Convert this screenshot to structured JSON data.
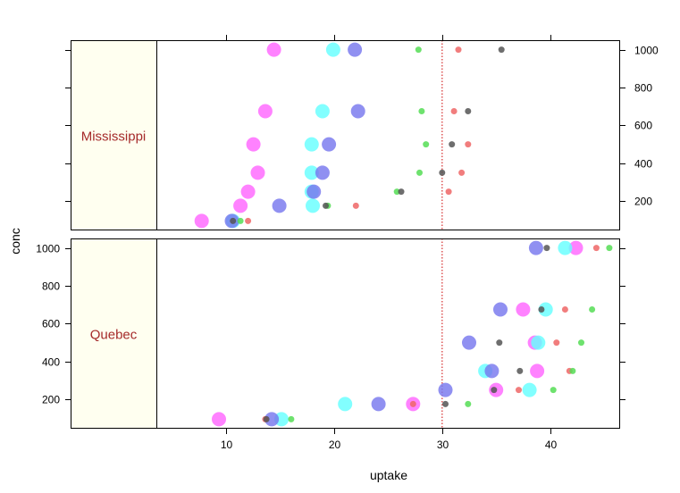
{
  "chart_data": {
    "type": "scatter",
    "title": "",
    "xlabel": "uptake",
    "ylabel": "conc",
    "xlim": [
      3.5,
      46.5
    ],
    "ylim": [
      45,
      1050
    ],
    "x_ticks": [
      10,
      20,
      30,
      40
    ],
    "y_ticks": [
      200,
      400,
      600,
      800,
      1000
    ],
    "reference_line": {
      "x": 30,
      "color": "#cc0000",
      "style": "dotted"
    },
    "grid": false,
    "panels": [
      {
        "strip": "Mississippi",
        "strip_color": "#fffff0",
        "series": [
          {
            "color": "#ff66ff",
            "size": "large",
            "points": [
              [
                7.7,
                95
              ],
              [
                11.3,
                175
              ],
              [
                12.0,
                250
              ],
              [
                12.9,
                350
              ],
              [
                12.5,
                500
              ],
              [
                13.6,
                675
              ],
              [
                14.4,
                1000
              ]
            ]
          },
          {
            "color": "#66ffff",
            "size": "large",
            "points": [
              [
                10.6,
                95
              ],
              [
                18.0,
                175
              ],
              [
                17.9,
                250
              ],
              [
                17.9,
                350
              ],
              [
                17.9,
                500
              ],
              [
                18.9,
                675
              ],
              [
                19.9,
                1000
              ]
            ]
          },
          {
            "color": "#7777ee",
            "size": "large",
            "points": [
              [
                10.5,
                95
              ],
              [
                14.9,
                175
              ],
              [
                18.1,
                250
              ],
              [
                18.9,
                350
              ],
              [
                19.5,
                500
              ],
              [
                22.2,
                675
              ],
              [
                21.9,
                1000
              ]
            ]
          },
          {
            "color": "#ee6666",
            "size": "small",
            "points": [
              [
                12.0,
                95
              ],
              [
                22.0,
                175
              ],
              [
                30.6,
                250
              ],
              [
                31.8,
                350
              ],
              [
                32.4,
                500
              ],
              [
                31.1,
                675
              ],
              [
                31.5,
                1000
              ]
            ]
          },
          {
            "color": "#55dd55",
            "size": "small",
            "points": [
              [
                11.3,
                95
              ],
              [
                19.4,
                175
              ],
              [
                25.8,
                250
              ],
              [
                27.9,
                350
              ],
              [
                28.5,
                500
              ],
              [
                28.1,
                675
              ],
              [
                27.8,
                1000
              ]
            ]
          },
          {
            "color": "#555555",
            "size": "small",
            "points": [
              [
                10.6,
                95
              ],
              [
                19.2,
                175
              ],
              [
                26.2,
                250
              ],
              [
                30.0,
                350
              ],
              [
                30.9,
                500
              ],
              [
                32.4,
                675
              ],
              [
                35.5,
                1000
              ]
            ]
          }
        ]
      },
      {
        "strip": "Quebec",
        "strip_color": "#fffff0",
        "series": [
          {
            "color": "#ff66ff",
            "size": "large",
            "points": [
              [
                9.3,
                95
              ],
              [
                27.3,
                175
              ],
              [
                35.0,
                250
              ],
              [
                38.8,
                350
              ],
              [
                38.6,
                500
              ],
              [
                37.5,
                675
              ],
              [
                42.4,
                1000
              ]
            ]
          },
          {
            "color": "#66ffff",
            "size": "large",
            "points": [
              [
                15.1,
                95
              ],
              [
                21.0,
                175
              ],
              [
                38.1,
                250
              ],
              [
                34.0,
                350
              ],
              [
                38.9,
                500
              ],
              [
                39.6,
                675
              ],
              [
                41.4,
                1000
              ]
            ]
          },
          {
            "color": "#7777ee",
            "size": "large",
            "points": [
              [
                14.2,
                95
              ],
              [
                24.1,
                175
              ],
              [
                30.3,
                250
              ],
              [
                34.6,
                350
              ],
              [
                32.5,
                500
              ],
              [
                35.4,
                675
              ],
              [
                38.7,
                1000
              ]
            ]
          },
          {
            "color": "#ee6666",
            "size": "small",
            "points": [
              [
                13.6,
                95
              ],
              [
                27.3,
                175
              ],
              [
                37.1,
                250
              ],
              [
                41.8,
                350
              ],
              [
                40.6,
                500
              ],
              [
                41.4,
                675
              ],
              [
                44.3,
                1000
              ]
            ]
          },
          {
            "color": "#55dd55",
            "size": "small",
            "points": [
              [
                16.0,
                95
              ],
              [
                32.4,
                175
              ],
              [
                40.3,
                250
              ],
              [
                42.1,
                350
              ],
              [
                42.9,
                500
              ],
              [
                43.9,
                675
              ],
              [
                45.5,
                1000
              ]
            ]
          },
          {
            "color": "#555555",
            "size": "small",
            "points": [
              [
                13.7,
                95
              ],
              [
                30.3,
                175
              ],
              [
                34.8,
                250
              ],
              [
                37.2,
                350
              ],
              [
                35.3,
                500
              ],
              [
                39.2,
                675
              ],
              [
                39.7,
                1000
              ]
            ]
          }
        ]
      }
    ]
  }
}
